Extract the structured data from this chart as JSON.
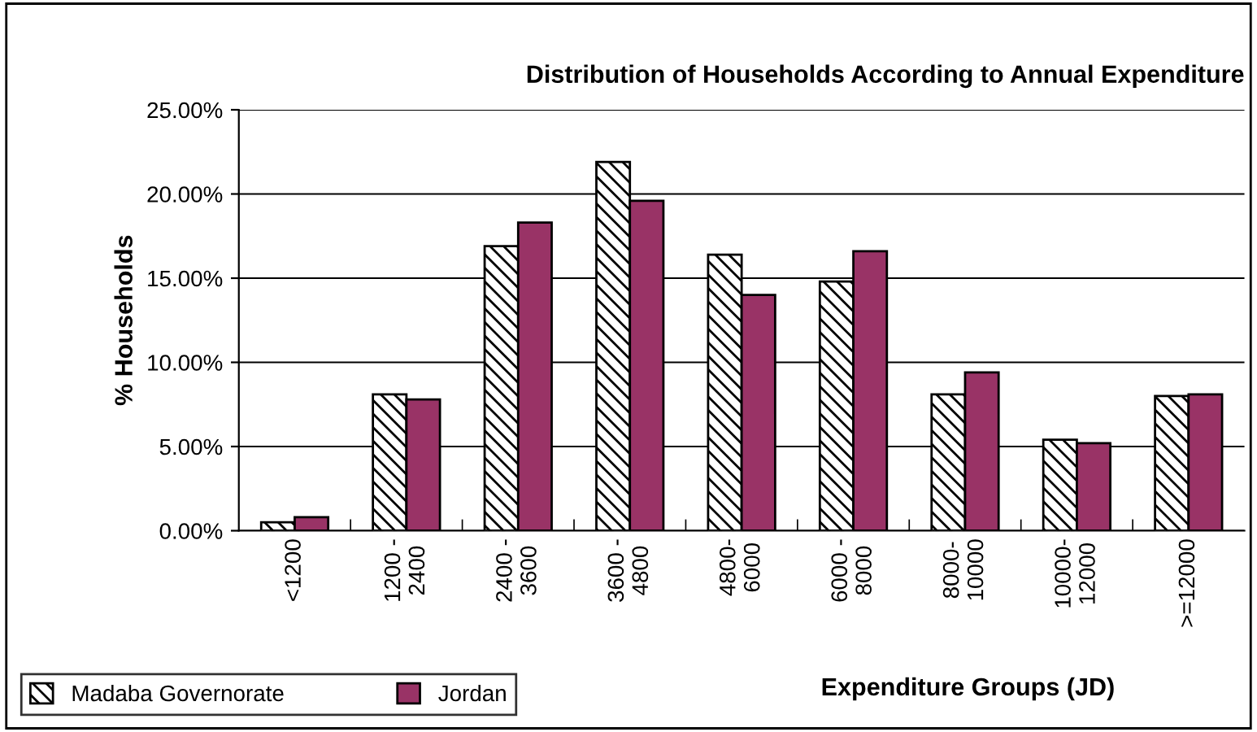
{
  "chart_data": {
    "type": "bar",
    "title": "Distribution of Households According to Annual Expenditure",
    "xlabel": "Expenditure Groups (JD)",
    "ylabel": "% Households",
    "categories": [
      "<1200",
      "1200 -\n2400",
      "2400 -\n3600",
      "3600 -\n4800",
      "4800-\n6000",
      "6000 -\n8000",
      "8000-\n10000",
      "10000-\n12000",
      ">=12000"
    ],
    "series": [
      {
        "name": "Madaba Governorate",
        "color": "#000000",
        "values": [
          0.5,
          8.1,
          16.9,
          21.9,
          16.4,
          14.8,
          8.1,
          5.4,
          8.0
        ]
      },
      {
        "name": "Jordan",
        "color": "#993366",
        "values": [
          0.8,
          7.8,
          18.3,
          19.6,
          14.0,
          16.6,
          9.4,
          5.2,
          8.1
        ]
      }
    ],
    "ylim": [
      0,
      25
    ],
    "yticks": [
      {
        "value": 0,
        "label": "0.00%"
      },
      {
        "value": 5,
        "label": "5.00%"
      },
      {
        "value": 10,
        "label": "10.00%"
      },
      {
        "value": 15,
        "label": "15.00%"
      },
      {
        "value": 20,
        "label": "20.00%"
      },
      {
        "value": 25,
        "label": "25.00%"
      }
    ],
    "grid": "y",
    "legend": "bottom left"
  }
}
